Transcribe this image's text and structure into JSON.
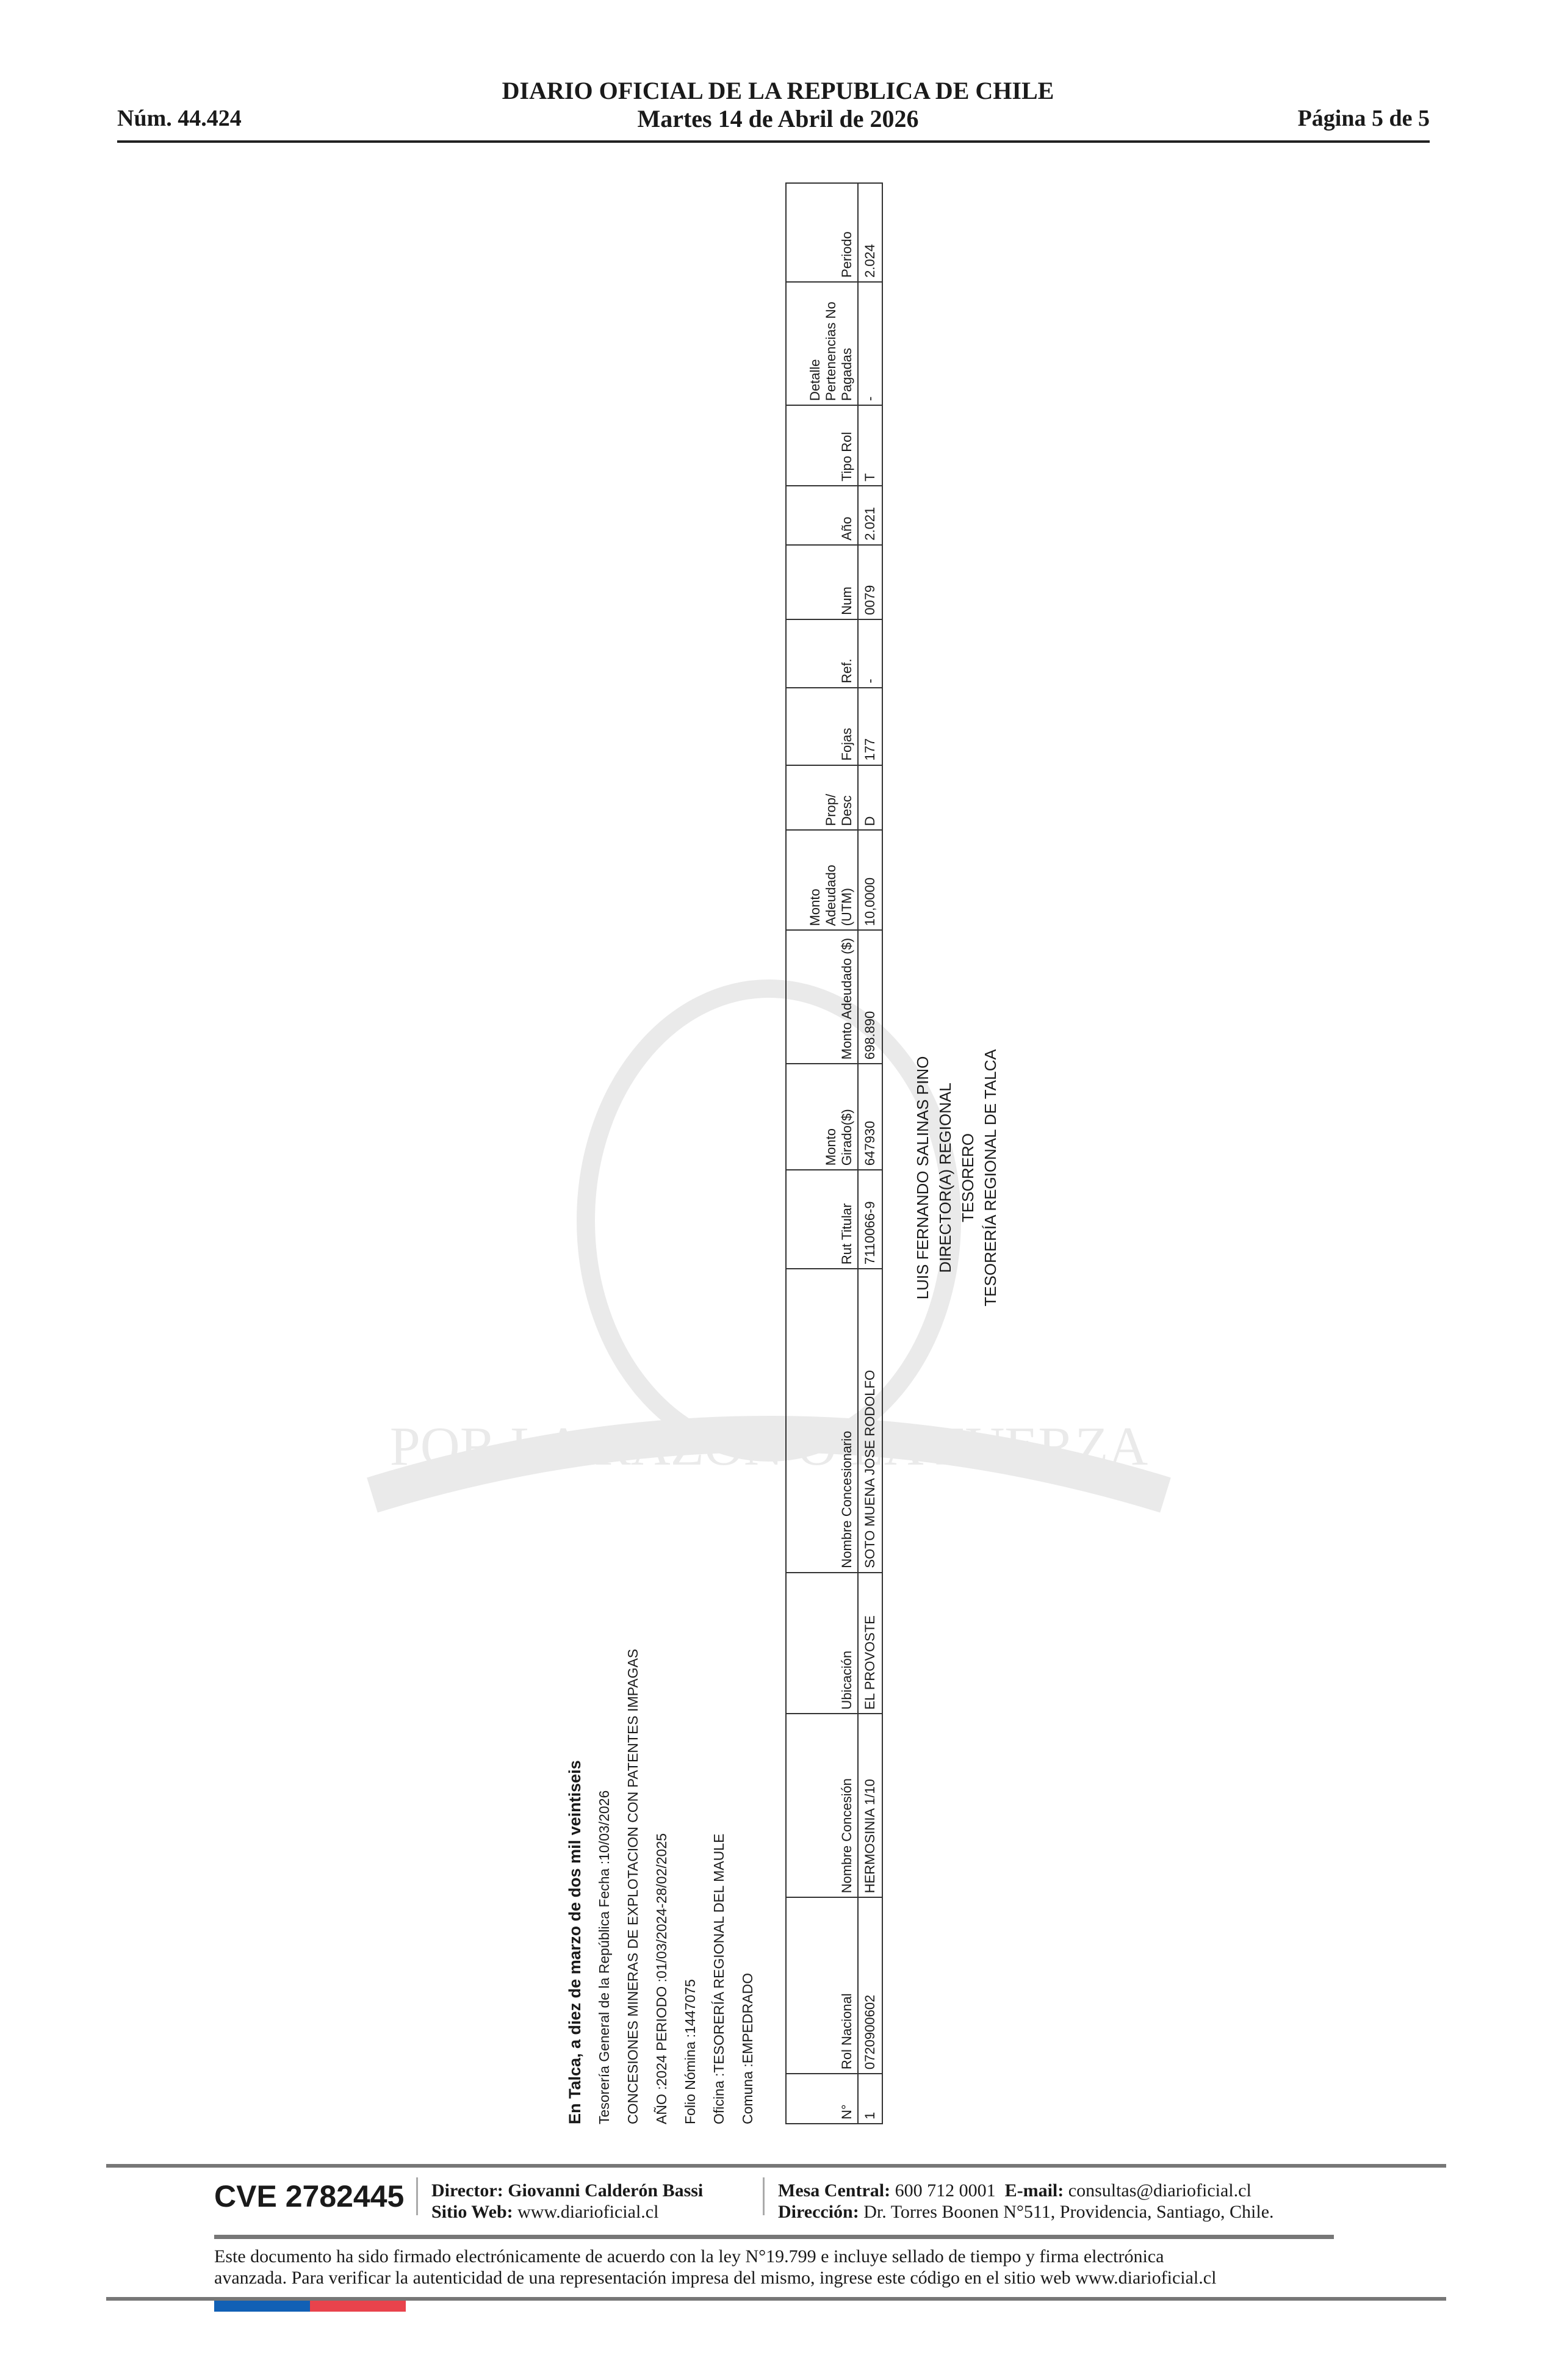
{
  "header": {
    "number": "Núm. 44.424",
    "title_line1": "DIARIO OFICIAL DE LA REPUBLICA DE CHILE",
    "title_line2": "Martes 14 de Abril de 2026",
    "page": "Página 5 de 5"
  },
  "intro": {
    "title": "En Talca, a diez de marzo de dos mil veintiseis",
    "lines": [
      "Tesorería General de la República Fecha :10/03/2026",
      "CONCESIONES MINERAS DE EXPLOTACION CON PATENTES IMPAGAS",
      "AÑO :2024 PERIODO :01/03/2024-28/02/2025",
      "Folio Nómina :1447075",
      "Oficina :TESORERÍA REGIONAL DEL MAULE",
      "Comuna :EMPEDRADO"
    ]
  },
  "table": {
    "headers": [
      "N°",
      "Rol Nacional",
      "Nombre Concesión",
      "Ubicación",
      "Nombre Concesionario",
      "Rut Titular",
      "Monto Girado($)",
      "Monto Adeudado ($)",
      "Monto Adeudado (UTM)",
      "Prop/ Desc",
      "Fojas",
      "Ref.",
      "Num",
      "Año",
      "Tipo Rol",
      "Detalle Pertenencias No Pagadas",
      "Periodo"
    ],
    "rows": [
      [
        "1",
        "0720900602",
        "HERMOSINIA 1/10",
        "EL PROVOSTE",
        "SOTO MUENA JOSE RODOLFO",
        "7110066-9",
        "647930",
        "698.890",
        "10,0000",
        "D",
        "177",
        "-",
        "0079",
        "2.021",
        "T",
        "-",
        "2.024"
      ]
    ]
  },
  "signature": {
    "lines": [
      "LUIS FERNANDO SALINAS PINO",
      "DIRECTOR(A) REGIONAL",
      "TESORERO",
      "TESORERÍA REGIONAL DE TALCA"
    ]
  },
  "watermark": {
    "motto": "POR LA RAZON O LA FUERZA"
  },
  "footer": {
    "cve": "CVE 2782445",
    "director_label": "Director:",
    "director_value": "Giovanni Calderón Bassi",
    "web_label": "Sitio Web:",
    "web_value": "www.diarioficial.cl",
    "mesa_label": "Mesa Central:",
    "mesa_value": "600 712 0001",
    "email_label": "E-mail:",
    "email_value": "consultas@diarioficial.cl",
    "address_label": "Dirección:",
    "address_value": "Dr. Torres Boonen N°511, Providencia, Santiago, Chile.",
    "legal_line1": "Este documento ha sido firmado electrónicamente de acuerdo con la ley N°19.799 e incluye sellado de tiempo y firma electrónica",
    "legal_line2": "avanzada. Para verificar la autenticidad de una representación impresa del mismo, ingrese este código en el sitio web www.diarioficial.cl"
  },
  "colors": {
    "flag_blue": "#1160b5",
    "flag_red": "#e9434c"
  }
}
